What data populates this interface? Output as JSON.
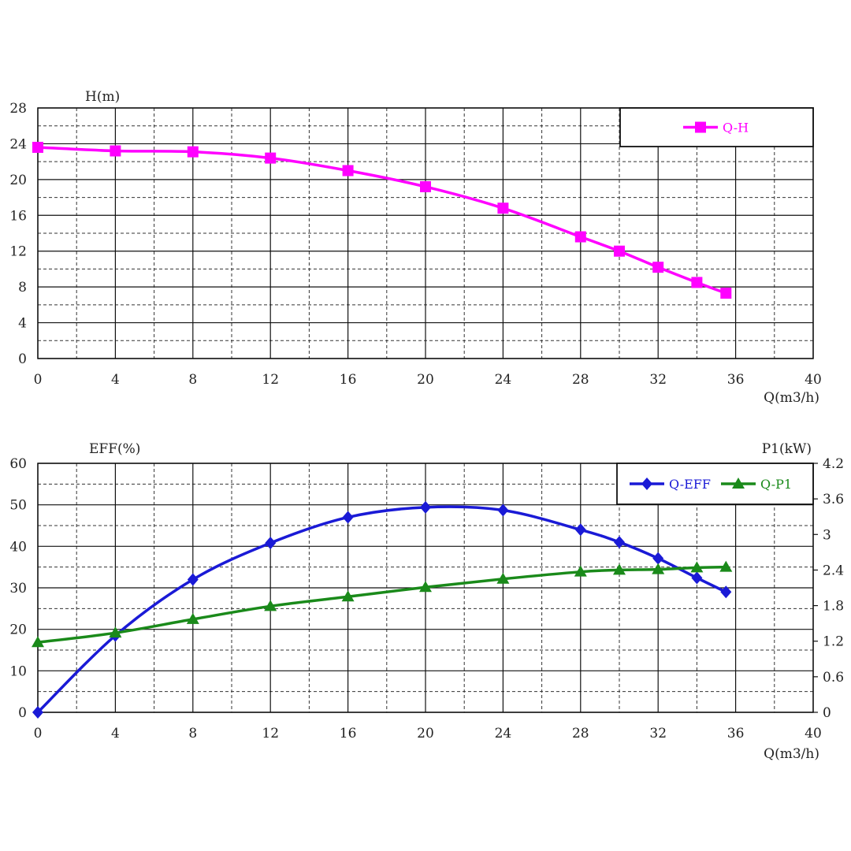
{
  "chart_data": [
    {
      "type": "line",
      "ylabel": "H(m)",
      "xlabel": "Q(m3/h)",
      "xlim": [
        0,
        40
      ],
      "ylim": [
        0,
        28
      ],
      "xticks": [
        0,
        4,
        8,
        12,
        16,
        20,
        24,
        28,
        32,
        36,
        40
      ],
      "yticks": [
        0,
        4,
        8,
        12,
        16,
        20,
        24,
        28
      ],
      "xtick_labels": [
        "0",
        "4",
        "8",
        "12",
        "16",
        "20",
        "24",
        "28",
        "32",
        "36",
        "40"
      ],
      "ytick_labels": [
        "0",
        "4",
        "8",
        "12",
        "16",
        "20",
        "24",
        "28"
      ],
      "grid": true,
      "legend_position": "top-right",
      "series": [
        {
          "name": "Q-H",
          "color": "#ff00ff",
          "marker": "square",
          "x": [
            0,
            4,
            8,
            12,
            16,
            20,
            24,
            28,
            30,
            32,
            34,
            35.5
          ],
          "y": [
            23.6,
            23.2,
            23.1,
            22.4,
            21.0,
            19.2,
            16.8,
            13.6,
            12.0,
            10.2,
            8.5,
            7.3
          ]
        }
      ]
    },
    {
      "type": "line",
      "ylabel": "EFF(%)",
      "y2label": "P1(kW)",
      "xlabel": "Q(m3/h)",
      "xlim": [
        0,
        40
      ],
      "ylim": [
        0,
        60
      ],
      "y2lim": [
        0,
        4.2
      ],
      "xticks": [
        0,
        4,
        8,
        12,
        16,
        20,
        24,
        28,
        32,
        36,
        40
      ],
      "yticks": [
        0,
        10,
        20,
        30,
        40,
        50,
        60
      ],
      "y2ticks": [
        0,
        0.6,
        1.2,
        1.8,
        2.4,
        3,
        3.6,
        4.2
      ],
      "xtick_labels": [
        "0",
        "4",
        "8",
        "12",
        "16",
        "20",
        "24",
        "28",
        "32",
        "36",
        "40"
      ],
      "ytick_labels": [
        "0",
        "10",
        "20",
        "30",
        "40",
        "50",
        "60"
      ],
      "y2tick_labels": [
        "0",
        "0.6",
        "1.2",
        "1.8",
        "2.4",
        "3",
        "3.6",
        "4.2"
      ],
      "grid": true,
      "legend_position": "top-right",
      "series": [
        {
          "name": "Q-EFF",
          "axis": "left",
          "color": "#1a1ad6",
          "marker": "diamond",
          "x": [
            0,
            4,
            8,
            12,
            16,
            20,
            24,
            28,
            30,
            32,
            34,
            35.5
          ],
          "y": [
            0,
            18.5,
            32,
            40.8,
            47,
            49.4,
            48.7,
            44,
            41,
            37.1,
            32.4,
            29
          ]
        },
        {
          "name": "Q-P1",
          "axis": "right",
          "color": "#1a8a1a",
          "marker": "triangle",
          "x": [
            0,
            4,
            8,
            12,
            16,
            20,
            24,
            28,
            30,
            32,
            34,
            35.5
          ],
          "y": [
            1.18,
            1.34,
            1.57,
            1.79,
            1.95,
            2.11,
            2.25,
            2.37,
            2.4,
            2.41,
            2.44,
            2.45
          ]
        }
      ]
    }
  ]
}
